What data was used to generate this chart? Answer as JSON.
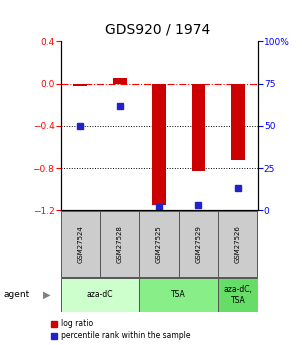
{
  "title": "GDS920 / 1974",
  "samples": [
    "GSM27524",
    "GSM27528",
    "GSM27525",
    "GSM27529",
    "GSM27526"
  ],
  "log_ratio": [
    -0.02,
    0.055,
    -1.15,
    -0.83,
    -0.72
  ],
  "percentile_rank": [
    50,
    62,
    2,
    3,
    13
  ],
  "agents": [
    {
      "label": "aza-dC",
      "start": 0,
      "end": 2,
      "color": "#ccffcc"
    },
    {
      "label": "TSA",
      "start": 2,
      "end": 4,
      "color": "#88ee88"
    },
    {
      "label": "aza-dC,\nTSA",
      "start": 4,
      "end": 5,
      "color": "#66dd66"
    }
  ],
  "bar_color": "#cc0000",
  "dot_color": "#2222cc",
  "ylim_left": [
    -1.2,
    0.4
  ],
  "ylim_right": [
    0,
    100
  ],
  "yticks_left": [
    0.4,
    0.0,
    -0.4,
    -0.8,
    -1.2
  ],
  "yticks_right": [
    100,
    75,
    50,
    25,
    0
  ],
  "dotted_lines": [
    -0.4,
    -0.8
  ],
  "background_color": "#ffffff",
  "agent_label": "agent",
  "legend_log": "log ratio",
  "legend_pct": "percentile rank within the sample",
  "title_fontsize": 10,
  "bar_width": 0.35,
  "sample_box_color": "#cccccc",
  "agent_box_colors": [
    "#ccffcc",
    "#88ee88",
    "#66dd66"
  ]
}
